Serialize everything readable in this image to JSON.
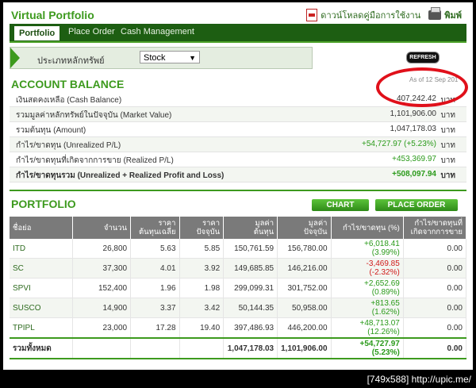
{
  "app": {
    "title": "Virtual Portfolio"
  },
  "toplinks": {
    "manual": "ดาวน์โหลดคู่มือการใช้งาน",
    "print": "พิมพ์"
  },
  "tabs": [
    "Portfolio",
    "Place Order",
    "Cash Management"
  ],
  "filter": {
    "label": "ประเภทหลักทรัพย์",
    "selected": "Stock"
  },
  "refresh_label": "REFRESH",
  "account": {
    "title": "ACCOUNT BALANCE",
    "as_of": "As of 12 Sep 201",
    "rows": [
      {
        "label": "เงินสดคงเหลือ (Cash Balance)",
        "value": "407,242.42",
        "unit": "บาท"
      },
      {
        "label": "รวมมูลค่าหลักทรัพย์ในปัจจุบัน (Market Value)",
        "value": "1,101,906.00",
        "unit": "บาท"
      },
      {
        "label": "รวมต้นทุน (Amount)",
        "value": "1,047,178.03",
        "unit": "บาท"
      },
      {
        "label": "กำไร/ขาดทุน (Unrealized P/L)",
        "value": "+54,727.97 (+5.23%)",
        "unit": "บาท"
      },
      {
        "label": "กำไร/ขาดทุนที่เกิดจากการขาย (Realized P/L)",
        "value": "+453,369.97",
        "unit": "บาท"
      },
      {
        "label": "กำไร/ขาดทุนรวม (Unrealized + Realized Profit and Loss)",
        "value": "+508,097.94",
        "unit": "บาท"
      }
    ]
  },
  "portfolio": {
    "title": "PORTFOLIO",
    "chart_button": "CHART",
    "order_button": "PLACE ORDER",
    "headers": {
      "symbol": "ชื่อย่อ",
      "volume": "จำนวน",
      "avg_cost_1": "ราคา",
      "avg_cost_2": "ต้นทุนเฉลี่ย",
      "price_1": "ราคา",
      "price_2": "ปัจจุบัน",
      "cost_value_1": "มูลค่า",
      "cost_value_2": "ต้นทุน",
      "mkt_value_1": "มูลค่า",
      "mkt_value_2": "ปัจจุบัน",
      "upl": "กำไร/ขาดทุน (%)",
      "rpl_1": "กำไร/ขาดทุนที่",
      "rpl_2": "เกิดจากการขาย"
    },
    "rows": [
      {
        "symbol": "ITD",
        "volume": "26,800",
        "avg_cost": "5.63",
        "price": "5.85",
        "cost_value": "150,761.59",
        "mkt_value": "156,780.00",
        "pl": "+6,018.41",
        "pl_pct": "(3.99%)",
        "realized": "0.00"
      },
      {
        "symbol": "SC",
        "volume": "37,300",
        "avg_cost": "4.01",
        "price": "3.92",
        "cost_value": "149,685.85",
        "mkt_value": "146,216.00",
        "pl": "-3,469.85",
        "pl_pct": "(-2.32%)",
        "realized": "0.00"
      },
      {
        "symbol": "SPVI",
        "volume": "152,400",
        "avg_cost": "1.96",
        "price": "1.98",
        "cost_value": "299,099.31",
        "mkt_value": "301,752.00",
        "pl": "+2,652.69",
        "pl_pct": "(0.89%)",
        "realized": "0.00"
      },
      {
        "symbol": "SUSCO",
        "volume": "14,900",
        "avg_cost": "3.37",
        "price": "3.42",
        "cost_value": "50,144.35",
        "mkt_value": "50,958.00",
        "pl": "+813.65",
        "pl_pct": "(1.62%)",
        "realized": "0.00"
      },
      {
        "symbol": "TPIPL",
        "volume": "23,000",
        "avg_cost": "17.28",
        "price": "19.40",
        "cost_value": "397,486.93",
        "mkt_value": "446,200.00",
        "pl": "+48,713.07",
        "pl_pct": "(12.26%)",
        "realized": "0.00"
      }
    ],
    "total": {
      "label": "รวมทั้งหมด",
      "cost_value": "1,047,178.03",
      "mkt_value": "1,101,906.00",
      "pl": "+54,727.97",
      "pl_pct": "(5.23%)",
      "realized": "0.00"
    }
  },
  "watermark": "[749x588] http://upic.me/",
  "colors": {
    "brand_green": "#3d9a1e",
    "nav_dark": "#1d5e12",
    "profit": "#2a9a1a",
    "loss": "#d01a1a",
    "highlight_circle": "#e0101a"
  }
}
